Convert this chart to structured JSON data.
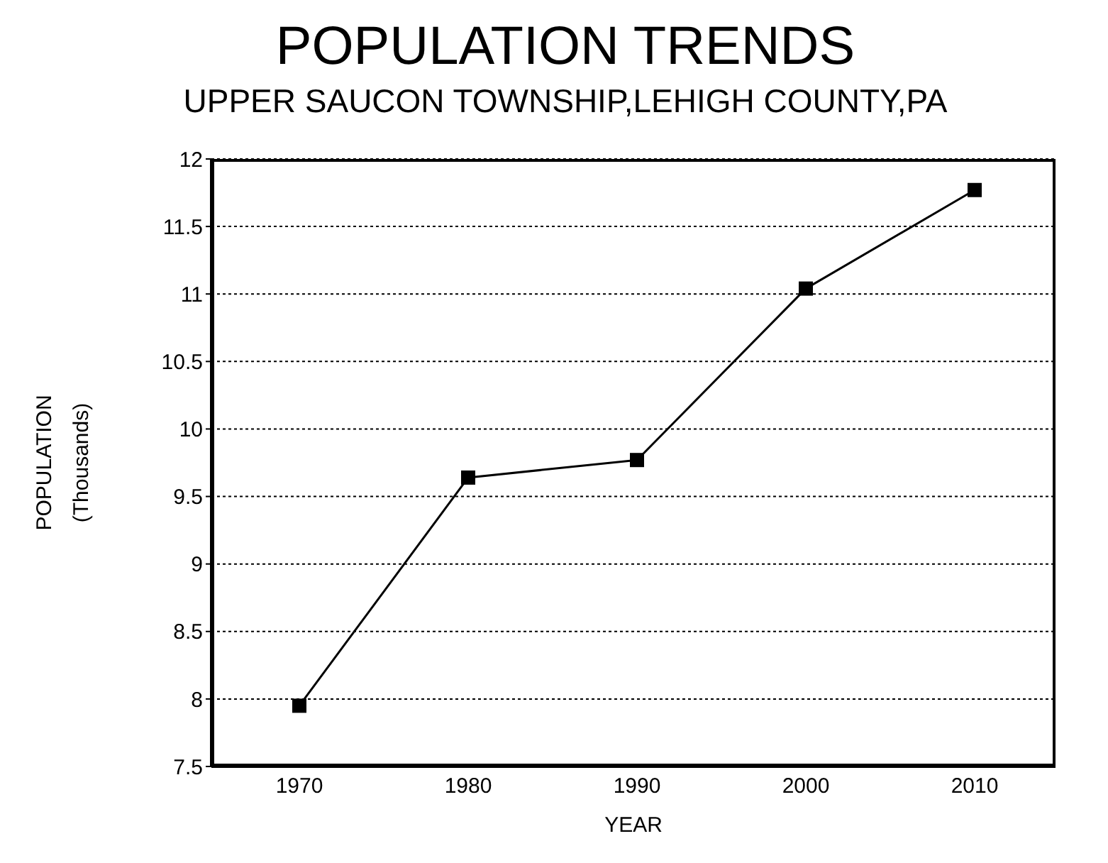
{
  "chart_data": {
    "type": "line",
    "title": "POPULATION TRENDS",
    "subtitle": "UPPER SAUCON TOWNSHIP,LEHIGH COUNTY,PA",
    "xlabel": "YEAR",
    "ylabel": "POPULATION\n(Thousands)",
    "categories": [
      "1970",
      "1980",
      "1990",
      "2000",
      "2010"
    ],
    "series": [
      {
        "color": "#000000",
        "values": [
          7.95,
          9.64,
          9.77,
          11.04,
          11.77
        ]
      }
    ],
    "ylim": [
      7.5,
      12
    ],
    "yticks": [
      7.5,
      8,
      8.5,
      9,
      9.5,
      10,
      10.5,
      11,
      11.5,
      12
    ],
    "grid": "y",
    "marker": "square",
    "line_style": "solid"
  }
}
